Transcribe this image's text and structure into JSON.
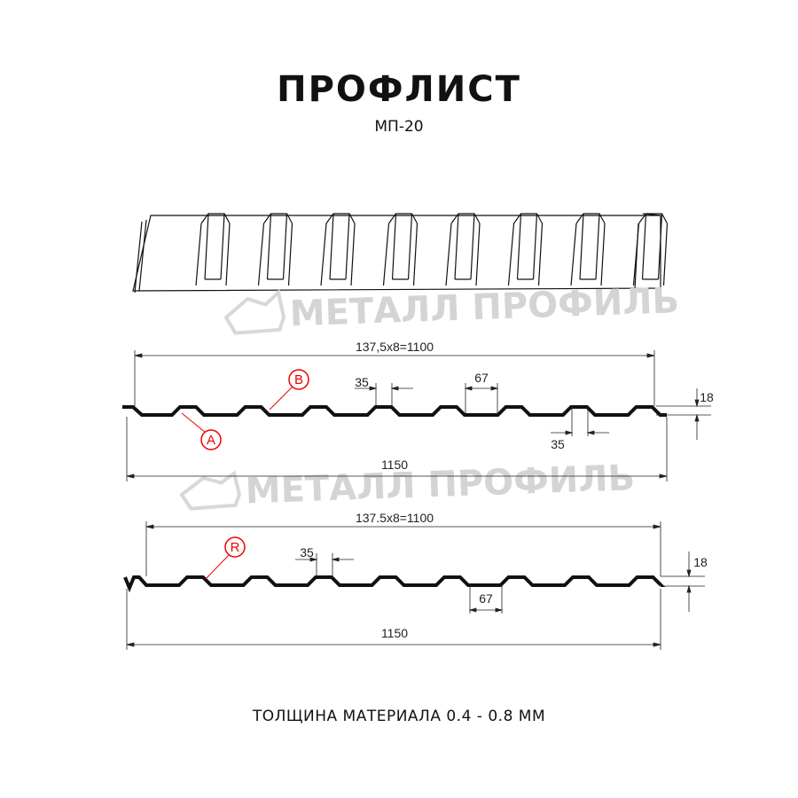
{
  "header": {
    "title": "ПРОФЛИСТ",
    "subtitle": "МП-20"
  },
  "watermark": {
    "text": "МЕТАЛЛ ПРОФИЛЬ",
    "color": "#d4d4d4"
  },
  "profile_1": {
    "pitch_label": "137,5x8=1100",
    "width_label": "1150",
    "crest_label": "35",
    "valley_label": "67",
    "crest_label_2": "35",
    "height_label": "18",
    "marker_a": "A",
    "marker_b": "B"
  },
  "profile_2": {
    "pitch_label": "137.5x8=1100",
    "width_label": "1150",
    "crest_label": "35",
    "valley_label": "67",
    "height_label": "18",
    "marker_r": "R"
  },
  "footer": {
    "thickness": "ТОЛЩИНА МАТЕРИАЛА 0.4 - 0.8 ММ"
  },
  "colors": {
    "marker": "#e00000",
    "profile": "#111111"
  }
}
